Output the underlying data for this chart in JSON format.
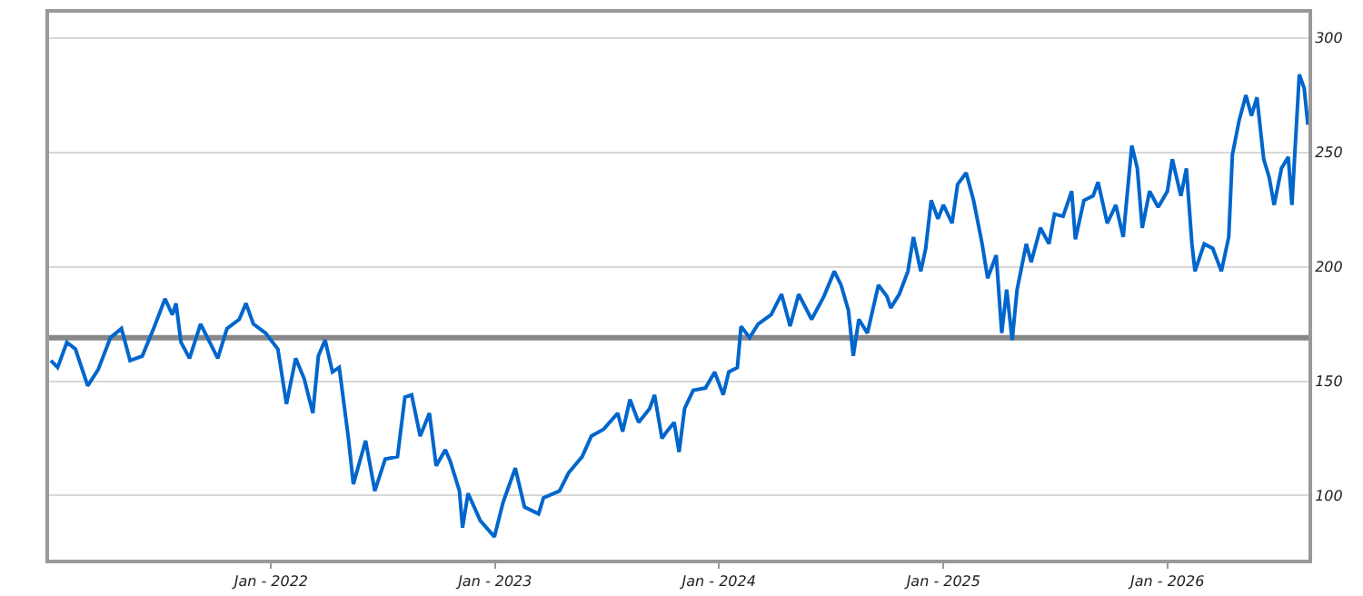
{
  "chart_data": {
    "type": "line",
    "x": [
      "2021-01-07",
      "2021-01-18",
      "2021-02-02",
      "2021-02-16",
      "2021-03-08",
      "2021-03-25",
      "2021-04-14",
      "2021-05-02",
      "2021-05-16",
      "2021-06-05",
      "2021-06-25",
      "2021-07-12",
      "2021-07-24",
      "2021-07-30",
      "2021-08-07",
      "2021-08-21",
      "2021-09-08",
      "2021-10-06",
      "2021-10-21",
      "2021-11-10",
      "2021-11-21",
      "2021-12-03",
      "2021-12-23",
      "2022-01-12",
      "2022-01-26",
      "2022-02-10",
      "2022-02-24",
      "2022-03-10",
      "2022-03-19",
      "2022-03-30",
      "2022-04-11",
      "2022-04-22",
      "2022-05-07",
      "2022-05-15",
      "2022-06-04",
      "2022-06-19",
      "2022-07-06",
      "2022-07-26",
      "2022-08-07",
      "2022-08-18",
      "2022-09-01",
      "2022-09-16",
      "2022-09-27",
      "2022-10-12",
      "2022-10-20",
      "2022-11-04",
      "2022-11-09",
      "2022-11-18",
      "2022-12-08",
      "2022-12-31",
      "2023-01-14",
      "2023-02-03",
      "2023-02-18",
      "2023-03-13",
      "2023-03-21",
      "2023-04-16",
      "2023-05-01",
      "2023-05-23",
      "2023-06-07",
      "2023-06-27",
      "2023-07-20",
      "2023-07-28",
      "2023-08-09",
      "2023-08-23",
      "2023-09-10",
      "2023-09-18",
      "2023-09-30",
      "2023-10-08",
      "2023-10-20",
      "2023-10-28",
      "2023-11-06",
      "2023-11-20",
      "2023-12-10",
      "2023-12-25",
      "2024-01-08",
      "2024-01-17",
      "2024-01-31",
      "2024-02-06",
      "2024-02-20",
      "2024-03-05",
      "2024-03-26",
      "2024-04-12",
      "2024-04-26",
      "2024-05-10",
      "2024-05-31",
      "2024-06-20",
      "2024-07-07",
      "2024-07-18",
      "2024-07-30",
      "2024-08-07",
      "2024-08-16",
      "2024-08-30",
      "2024-09-17",
      "2024-10-01",
      "2024-10-07",
      "2024-10-21",
      "2024-11-04",
      "2024-11-13",
      "2024-11-25",
      "2024-12-03",
      "2024-12-12",
      "2024-12-23",
      "2025-01-01",
      "2025-01-15",
      "2025-01-24",
      "2025-02-07",
      "2025-02-19",
      "2025-03-05",
      "2025-03-14",
      "2025-03-28",
      "2025-04-06",
      "2025-04-14",
      "2025-04-23",
      "2025-05-01",
      "2025-05-16",
      "2025-05-24",
      "2025-06-08",
      "2025-06-22",
      "2025-07-01",
      "2025-07-15",
      "2025-07-29",
      "2025-08-04",
      "2025-08-18",
      "2025-09-02",
      "2025-09-10",
      "2025-09-25",
      "2025-10-09",
      "2025-10-21",
      "2025-11-04",
      "2025-11-13",
      "2025-11-21",
      "2025-12-03",
      "2025-12-17",
      "2026-01-01",
      "2026-01-09",
      "2026-01-23",
      "2026-02-01",
      "2026-02-10",
      "2026-02-15",
      "2026-03-02",
      "2026-03-16",
      "2026-03-30",
      "2026-04-11",
      "2026-04-17",
      "2026-04-28",
      "2026-05-09",
      "2026-05-18",
      "2026-05-27",
      "2026-06-07",
      "2026-06-16",
      "2026-06-24",
      "2026-07-06",
      "2026-07-17",
      "2026-07-23",
      "2026-08-04",
      "2026-08-12",
      "2026-08-18"
    ],
    "series": [
      {
        "color": "#0066cc",
        "values": [
          159,
          156,
          167,
          164,
          148,
          155,
          169,
          173,
          159,
          161,
          174,
          186,
          179,
          184,
          167,
          160,
          175,
          160,
          173,
          177,
          184,
          175,
          171,
          164,
          140,
          160,
          151,
          136,
          161,
          168,
          154,
          156,
          125,
          105,
          124,
          102,
          116,
          117,
          143,
          144,
          126,
          136,
          113,
          120,
          115,
          102,
          86,
          101,
          89,
          82,
          97,
          112,
          95,
          92,
          99,
          102,
          110,
          117,
          126,
          129,
          136,
          128,
          142,
          132,
          138,
          144,
          125,
          128,
          132,
          119,
          138,
          146,
          147,
          154,
          144,
          154,
          156,
          174,
          169,
          175,
          179,
          188,
          174,
          188,
          177,
          187,
          198,
          192,
          181,
          161,
          177,
          171,
          192,
          187,
          182,
          188,
          198,
          213,
          198,
          208,
          229,
          221,
          227,
          219,
          236,
          241,
          229,
          210,
          195,
          205,
          171,
          190,
          168,
          190,
          210,
          202,
          217,
          210,
          223,
          222,
          233,
          212,
          229,
          231,
          237,
          219,
          227,
          213,
          253,
          243,
          217,
          233,
          226,
          233,
          247,
          231,
          243,
          210,
          198,
          210,
          208,
          198,
          213,
          249,
          264,
          275,
          266,
          274,
          247,
          239,
          227,
          243,
          248,
          227,
          284,
          278,
          262
        ]
      }
    ],
    "xlim": [
      "2021-01-04",
      "2026-08-19"
    ],
    "xticks": [
      {
        "value": "2022-01-01",
        "label": "Jan - 2022"
      },
      {
        "value": "2023-01-01",
        "label": "Jan - 2023"
      },
      {
        "value": "2024-01-01",
        "label": "Jan - 2024"
      },
      {
        "value": "2025-01-01",
        "label": "Jan - 2025"
      },
      {
        "value": "2026-01-01",
        "label": "Jan - 2026"
      }
    ],
    "ylim": [
      72,
      311
    ],
    "yticks": [
      100,
      150,
      200,
      250,
      300
    ],
    "grid": "y",
    "marker": "none",
    "line_style": "solid",
    "ref_lines": [
      {
        "axis": "y",
        "value": 169,
        "color": "#888888",
        "line_style": "solid"
      }
    ]
  }
}
